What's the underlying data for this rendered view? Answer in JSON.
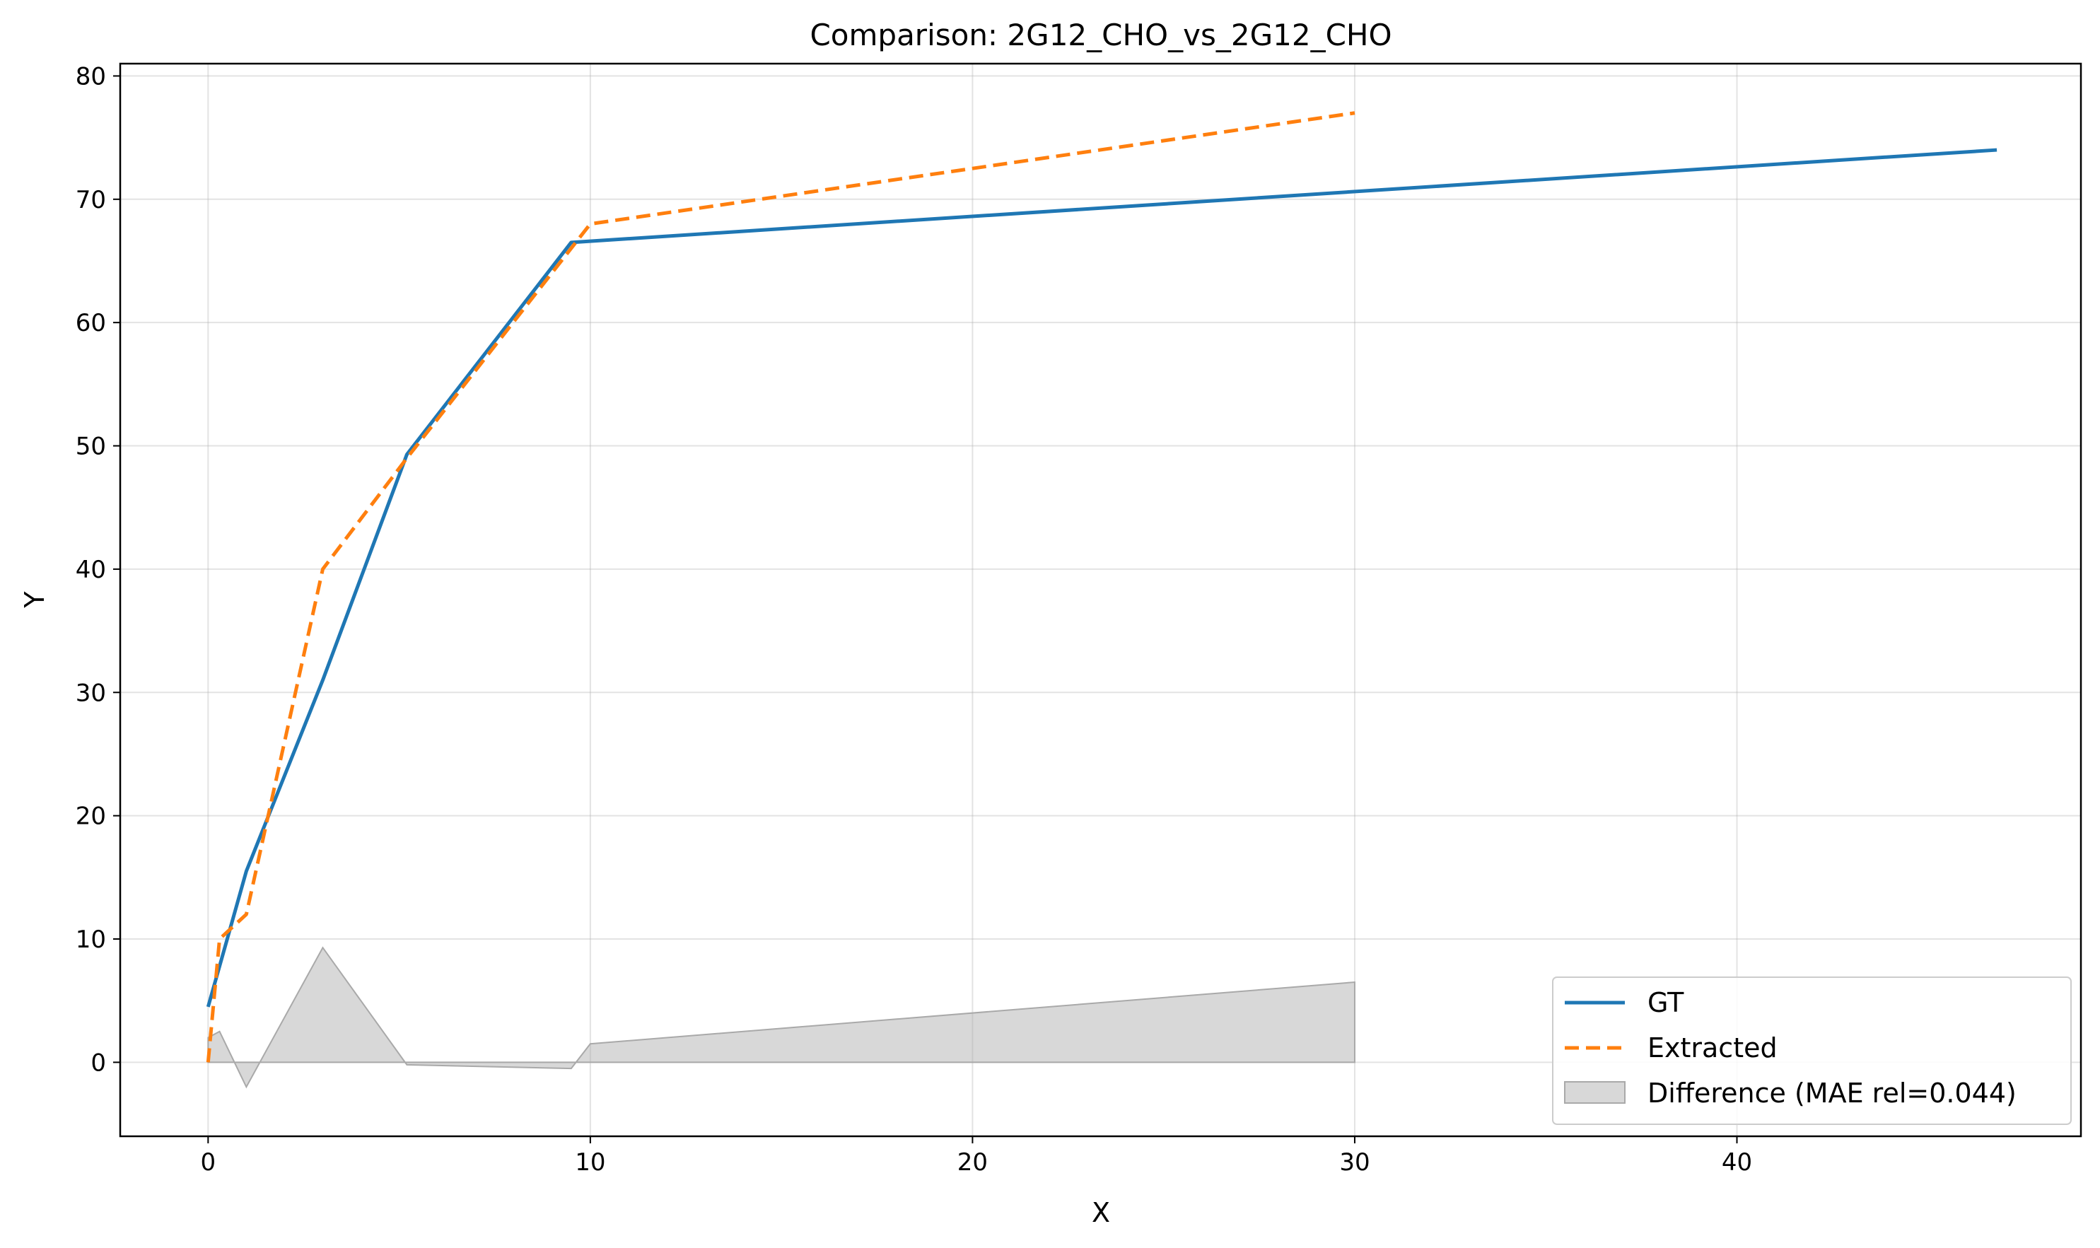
{
  "chart_data": {
    "type": "line",
    "title": "Comparison: 2G12_CHO_vs_2G12_CHO",
    "xlabel": "X",
    "ylabel": "Y",
    "xlim": [
      -2.3,
      49
    ],
    "ylim": [
      -6,
      81
    ],
    "x_ticks": [
      0,
      10,
      20,
      30,
      40
    ],
    "y_ticks": [
      0,
      10,
      20,
      30,
      40,
      50,
      60,
      70,
      80
    ],
    "grid": true,
    "legend_position": "lower-right",
    "series": [
      {
        "name": "GT",
        "style": "solid",
        "color": "#1f77b4",
        "x": [
          0.0,
          0.5,
          1.0,
          3.0,
          5.2,
          9.5,
          46.8
        ],
        "y": [
          4.5,
          10.0,
          15.5,
          31.0,
          49.3,
          66.5,
          74.0
        ]
      },
      {
        "name": "Extracted",
        "style": "dashed",
        "color": "#ff7f0e",
        "x": [
          0.0,
          0.3,
          1.0,
          3.0,
          5.2,
          10.0,
          30.0
        ],
        "y": [
          0.0,
          10.0,
          12.0,
          40.0,
          49.0,
          68.0,
          77.0
        ]
      }
    ],
    "difference": {
      "name": "Difference (MAE rel=0.044)",
      "color": "#a9a9a9",
      "x": [
        0.0,
        0.3,
        1.0,
        3.0,
        5.2,
        9.5,
        10.0,
        30.0
      ],
      "y": [
        2.0,
        2.5,
        -2.0,
        9.3,
        -0.2,
        -0.5,
        1.5,
        6.5
      ]
    }
  }
}
